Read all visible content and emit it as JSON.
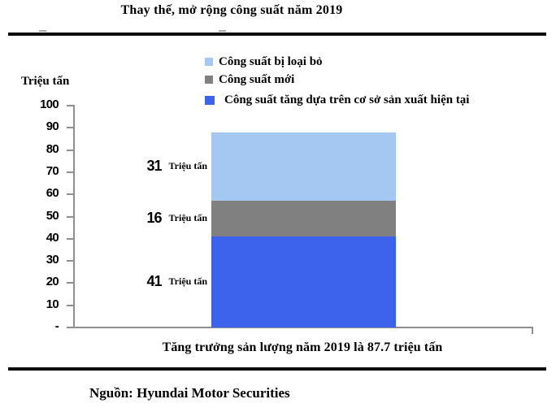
{
  "page": {
    "title": "Thay thế, mở rộng công suất năm 2019",
    "source": "Nguồn: Hyundai Motor Securities"
  },
  "legend": {
    "items": [
      {
        "label": "Công suất bị loại bỏ",
        "color": "#A4C8F2"
      },
      {
        "label": "Công suất mới",
        "color": "#808080"
      },
      {
        "label": "Công suất tăng dựa trên cơ sở sản xuất hiện tại",
        "color": "#3D63ED"
      }
    ]
  },
  "chart_data": {
    "type": "bar",
    "stacked": true,
    "title": "Thay thế, mở rộng công suất năm 2019",
    "ylabel": "Triệu tấn",
    "xlabel": "Tăng trưởng sản lượng năm 2019 là 87.7 triệu tấn",
    "categories": [
      "Tăng trưởng sản lượng năm 2019 là 87.7 triệu tấn"
    ],
    "series": [
      {
        "name": "Công suất tăng dựa trên cơ sở sản xuất hiện tại",
        "values": [
          41
        ],
        "color": "#3D63ED"
      },
      {
        "name": "Công suất mới",
        "values": [
          16
        ],
        "color": "#808080"
      },
      {
        "name": "Công suất bị loại bỏ",
        "values": [
          31
        ],
        "color": "#A4C8F2"
      }
    ],
    "ylim": [
      0,
      100
    ],
    "ytick_step": 10,
    "zero_tick_label": "-",
    "unit_label": "Triệu tấn",
    "annotations": [
      "41 Triệu tấn",
      "16 Triệu tấn",
      "31 Triệu tấn"
    ],
    "total_label": "87.7",
    "legend_position": "top",
    "grid": false
  }
}
